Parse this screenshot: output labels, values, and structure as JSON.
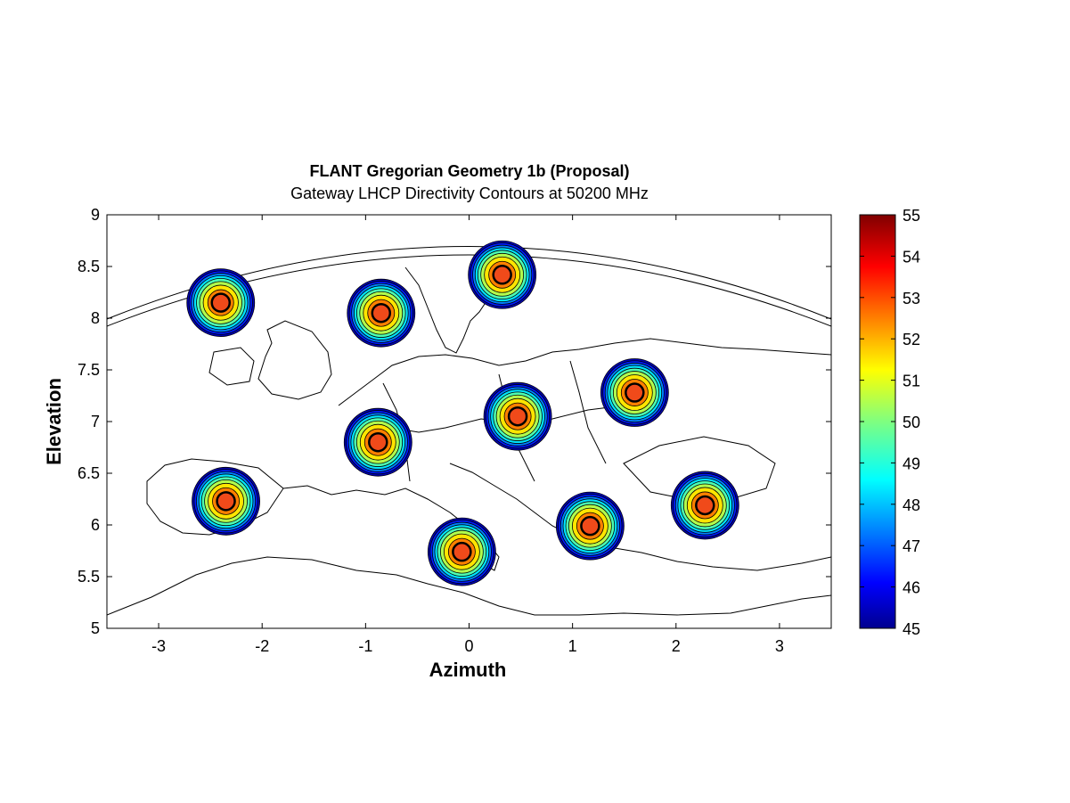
{
  "chart_data": {
    "type": "heatmap",
    "title": "FLANT Gregorian Geometry 1b (Proposal)",
    "subtitle": "Gateway LHCP Directivity Contours at 50200 MHz",
    "xlabel": "Azimuth",
    "ylabel": "Elevation",
    "xlim": [
      -3.5,
      3.5
    ],
    "ylim": [
      5,
      9
    ],
    "x_ticks": [
      -3,
      -2,
      -1,
      0,
      1,
      2,
      3
    ],
    "y_ticks": [
      5,
      5.5,
      6,
      6.5,
      7,
      7.5,
      8,
      8.5,
      9
    ],
    "x_tick_labels": [
      "-3",
      "-2",
      "-1",
      "0",
      "1",
      "2",
      "3"
    ],
    "y_tick_labels": [
      "5",
      "5.5",
      "6",
      "6.5",
      "7",
      "7.5",
      "8",
      "8.5",
      "9"
    ],
    "colorbar": {
      "min": 45,
      "max": 55,
      "ticks": [
        45,
        46,
        47,
        48,
        49,
        50,
        51,
        52,
        53,
        54,
        55
      ],
      "tick_labels": [
        "45",
        "46",
        "47",
        "48",
        "49",
        "50",
        "51",
        "52",
        "53",
        "54",
        "55"
      ],
      "colormap": "jet"
    },
    "beams": [
      {
        "azimuth": -2.4,
        "elevation": 8.15,
        "peak": 53.2
      },
      {
        "azimuth": -0.85,
        "elevation": 8.05,
        "peak": 53.3
      },
      {
        "azimuth": 0.32,
        "elevation": 8.42,
        "peak": 53.3
      },
      {
        "azimuth": 1.6,
        "elevation": 7.28,
        "peak": 53.3
      },
      {
        "azimuth": 0.47,
        "elevation": 7.05,
        "peak": 53.3
      },
      {
        "azimuth": -0.88,
        "elevation": 6.8,
        "peak": 53.3
      },
      {
        "azimuth": -2.35,
        "elevation": 6.23,
        "peak": 53.3
      },
      {
        "azimuth": -0.07,
        "elevation": 5.74,
        "peak": 53.3
      },
      {
        "azimuth": 1.17,
        "elevation": 5.99,
        "peak": 53.3
      },
      {
        "azimuth": 2.28,
        "elevation": 6.19,
        "peak": 53.3
      }
    ],
    "beam_edge_level": 45,
    "background": "coastline map of Europe and Mediterranean"
  }
}
